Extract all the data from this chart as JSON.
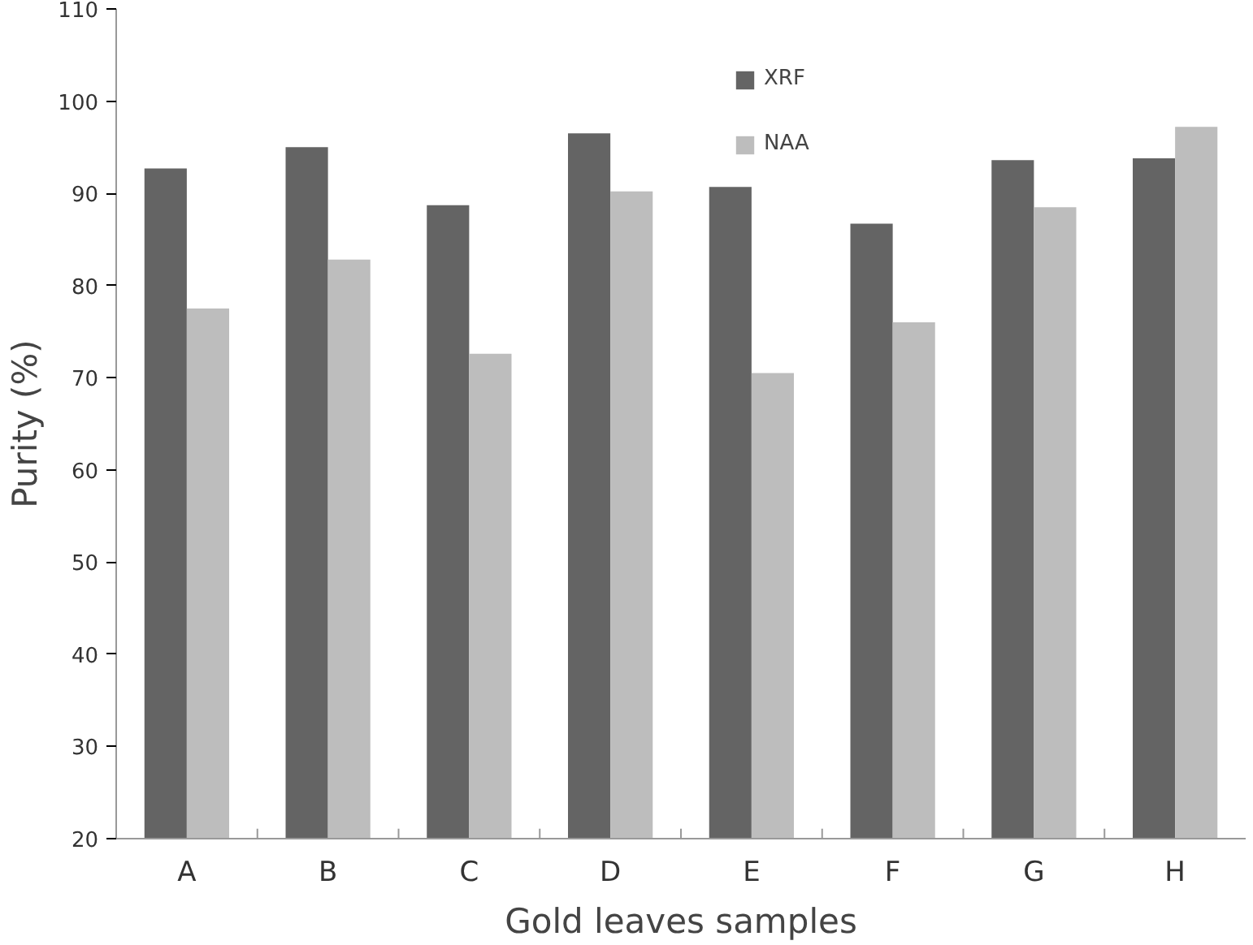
{
  "chart_data": {
    "type": "bar",
    "xlabel": "Gold leaves samples",
    "ylabel": "Purity (%)",
    "categories": [
      "A",
      "B",
      "C",
      "D",
      "E",
      "F",
      "G",
      "H"
    ],
    "series": [
      {
        "name": "XRF",
        "color": "#646464",
        "values": [
          92.7,
          95.0,
          88.7,
          96.5,
          90.7,
          86.7,
          93.6,
          93.8
        ]
      },
      {
        "name": "NAA",
        "color": "#bdbdbd",
        "values": [
          77.5,
          82.8,
          72.6,
          90.2,
          70.5,
          76.0,
          88.5,
          97.2
        ]
      }
    ],
    "ylim": [
      20,
      110
    ],
    "yticks": [
      20,
      30,
      40,
      50,
      60,
      70,
      80,
      90,
      100,
      110
    ],
    "grid": false,
    "legend": "top"
  }
}
